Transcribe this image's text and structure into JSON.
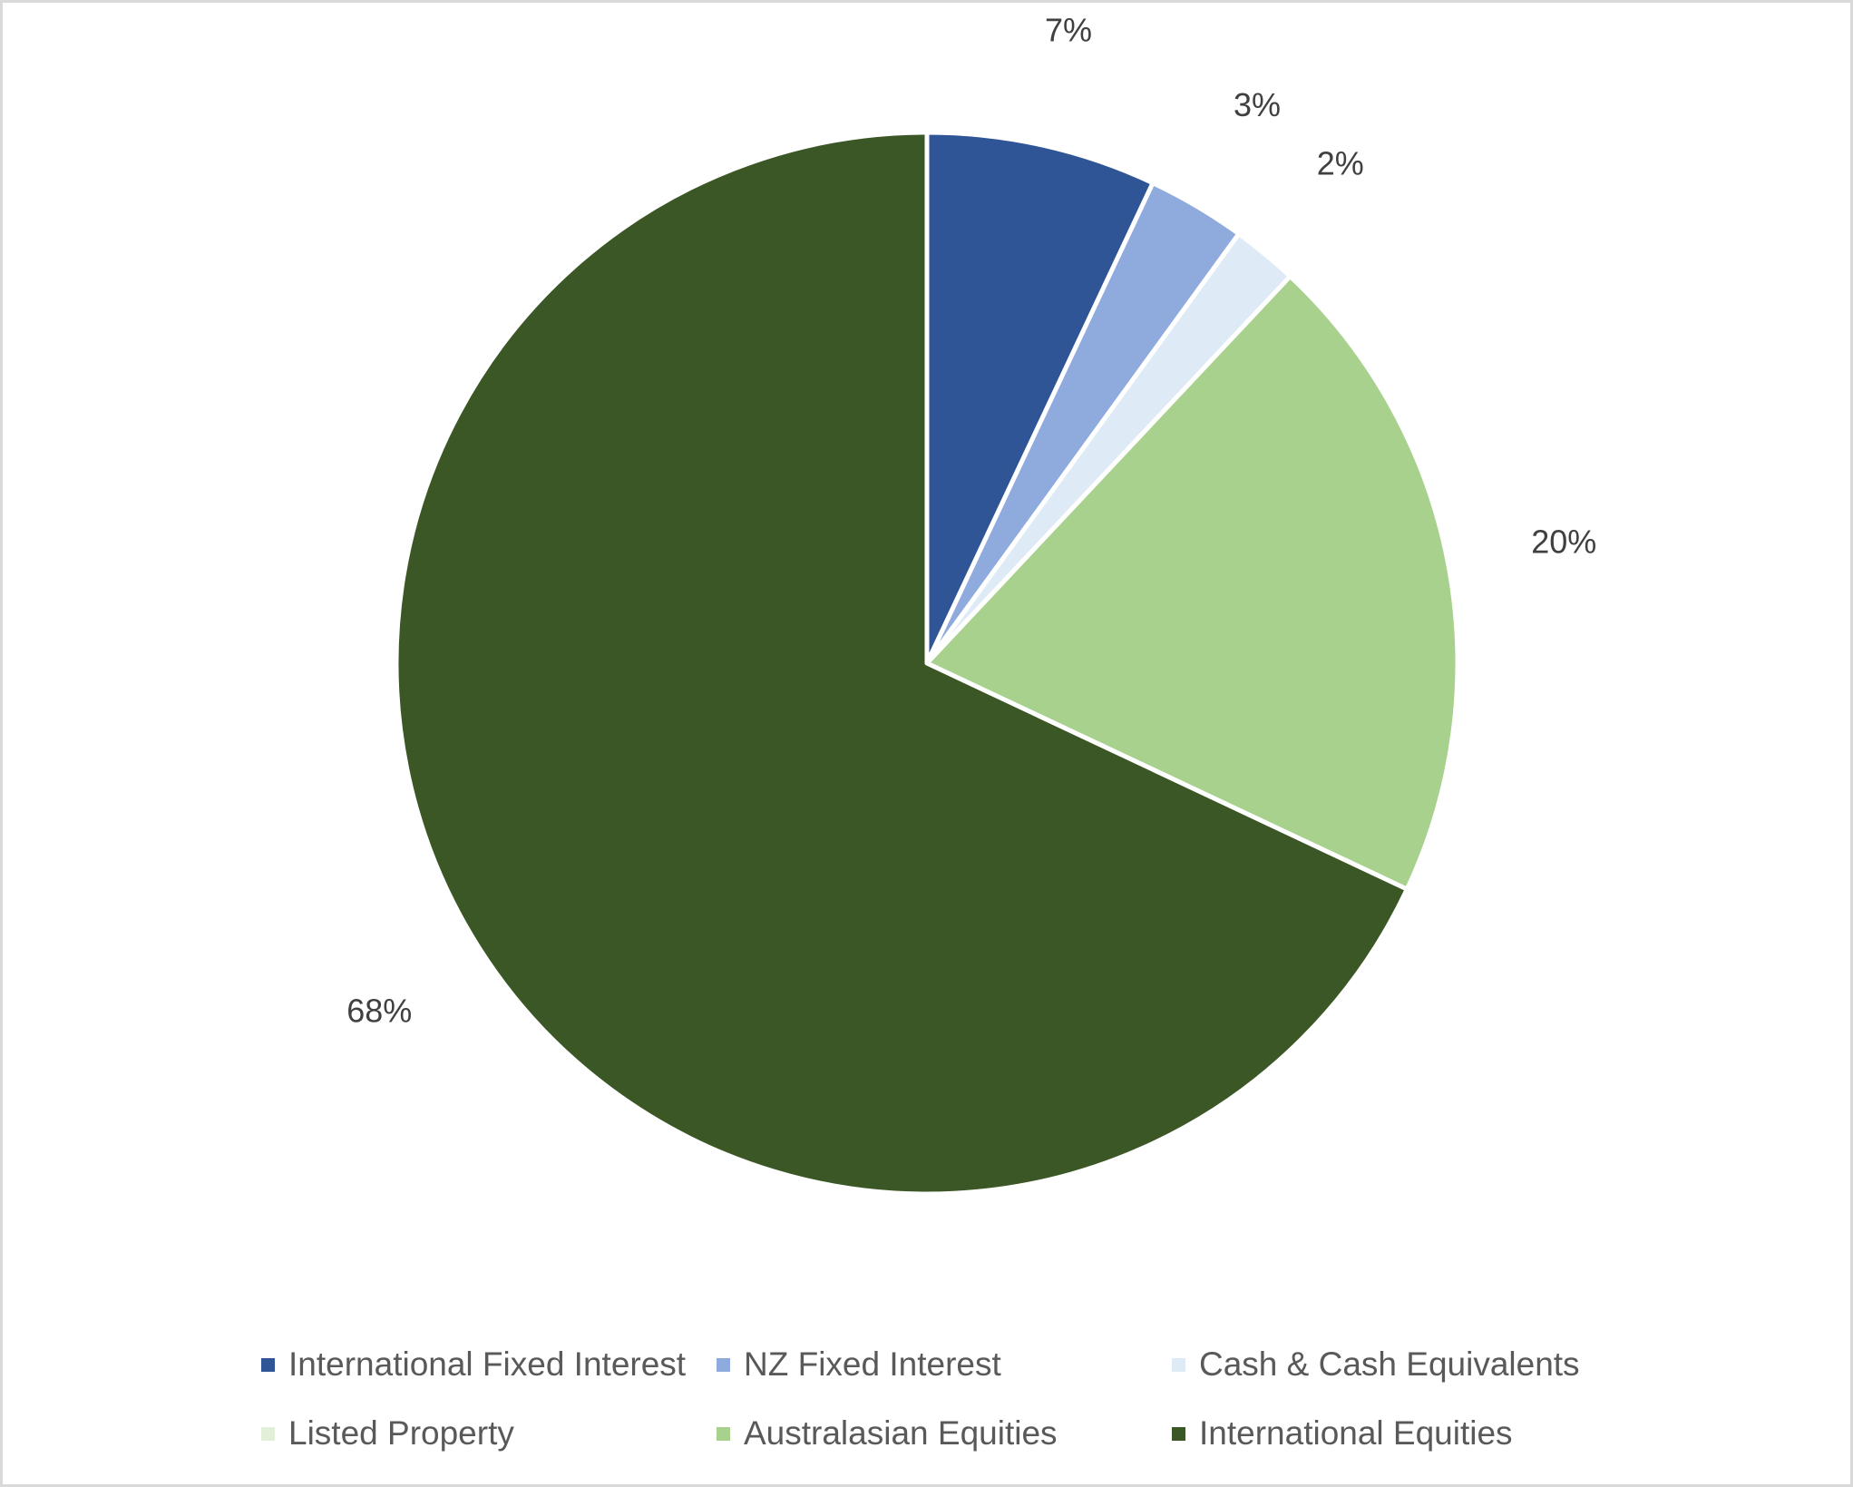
{
  "chart_data": {
    "type": "pie",
    "title": "",
    "legend_position": "bottom",
    "slices": [
      {
        "label": "International Fixed Interest",
        "value": 7,
        "display": "7%",
        "color": "#2F5597"
      },
      {
        "label": "NZ Fixed Interest",
        "value": 3,
        "display": "3%",
        "color": "#8FAADC"
      },
      {
        "label": "Cash & Cash Equivalents",
        "value": 2,
        "display": "2%",
        "color": "#DEEBF7"
      },
      {
        "label": "Listed Property",
        "value": 0,
        "display": "",
        "color": "#E2F0D9"
      },
      {
        "label": "Australasian Equities",
        "value": 20,
        "display": "20%",
        "color": "#A9D18E"
      },
      {
        "label": "International Equities",
        "value": 68,
        "display": "68%",
        "color": "#3B5725"
      }
    ]
  }
}
